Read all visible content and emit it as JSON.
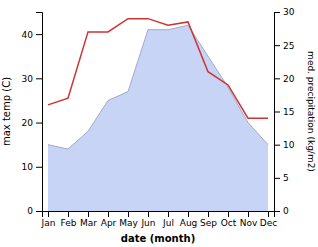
{
  "chart_data": {
    "type": "line",
    "xlabel": "date (month)",
    "ylabel": "max temp (C)",
    "y2label": "med. precipitation (kg/m2)",
    "categories": [
      "Jan",
      "Feb",
      "Mar",
      "Apr",
      "May",
      "Jun",
      "Jul",
      "Aug",
      "Sep",
      "Oct",
      "Nov",
      "Dec"
    ],
    "series": [
      {
        "type": "area",
        "color": "#c8d4f5",
        "values": [
          15.0,
          14.0,
          18.0,
          25.0,
          27.0,
          41.0,
          41.0,
          42.0,
          35.0,
          28.0,
          20.0,
          15.0
        ]
      },
      {
        "type": "line",
        "color": "#cc3333",
        "axis": "y2",
        "values": [
          16.0,
          17.0,
          27.0,
          27.0,
          29.0,
          29.0,
          28.0,
          28.5,
          21.0,
          19.0,
          14.0,
          14.0
        ]
      }
    ],
    "ylim": [
      0,
      45
    ],
    "yticks": [
      0,
      10,
      20,
      30,
      40
    ],
    "y2lim": [
      0,
      30
    ],
    "y2ticks": [
      0,
      5,
      10,
      15,
      20,
      25,
      30
    ],
    "grid": false
  }
}
